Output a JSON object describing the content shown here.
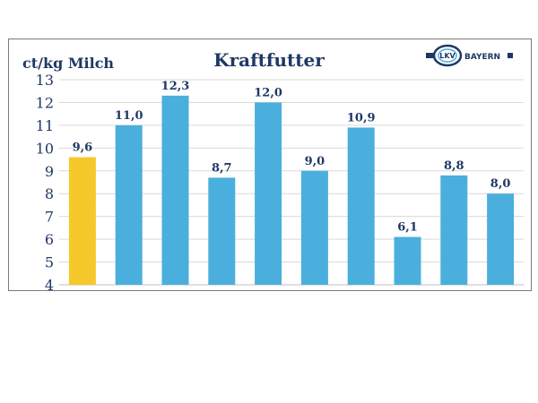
{
  "chart_data": {
    "type": "bar",
    "title": "Kraftfutter",
    "ylabel": "ct/kg Milch",
    "xlabel": "",
    "ylim": [
      4,
      13
    ],
    "yticks": [
      4,
      5,
      6,
      7,
      8,
      9,
      10,
      11,
      12,
      13
    ],
    "grid": true,
    "categories": [
      "",
      "",
      "",
      "",
      "",
      "",
      "",
      "",
      "",
      ""
    ],
    "values": [
      9.6,
      11.0,
      12.3,
      8.7,
      12.0,
      9.0,
      10.9,
      6.1,
      8.8,
      8.0
    ],
    "value_labels": [
      "9,6",
      "11,0",
      "12,3",
      "8,7",
      "12,0",
      "9,0",
      "10,9",
      "6,1",
      "8,8",
      "8,0"
    ],
    "bar_colors": [
      "#f5c92b",
      "#4aafdc",
      "#4aafdc",
      "#4aafdc",
      "#4aafdc",
      "#4aafdc",
      "#4aafdc",
      "#4aafdc",
      "#4aafdc",
      "#4aafdc"
    ]
  },
  "logo": {
    "text": "BAYERN",
    "mark_text": "LKV"
  },
  "colors": {
    "label": "#1f3864",
    "grid": "#d9d9d9",
    "axis": "#bfbfbf"
  }
}
